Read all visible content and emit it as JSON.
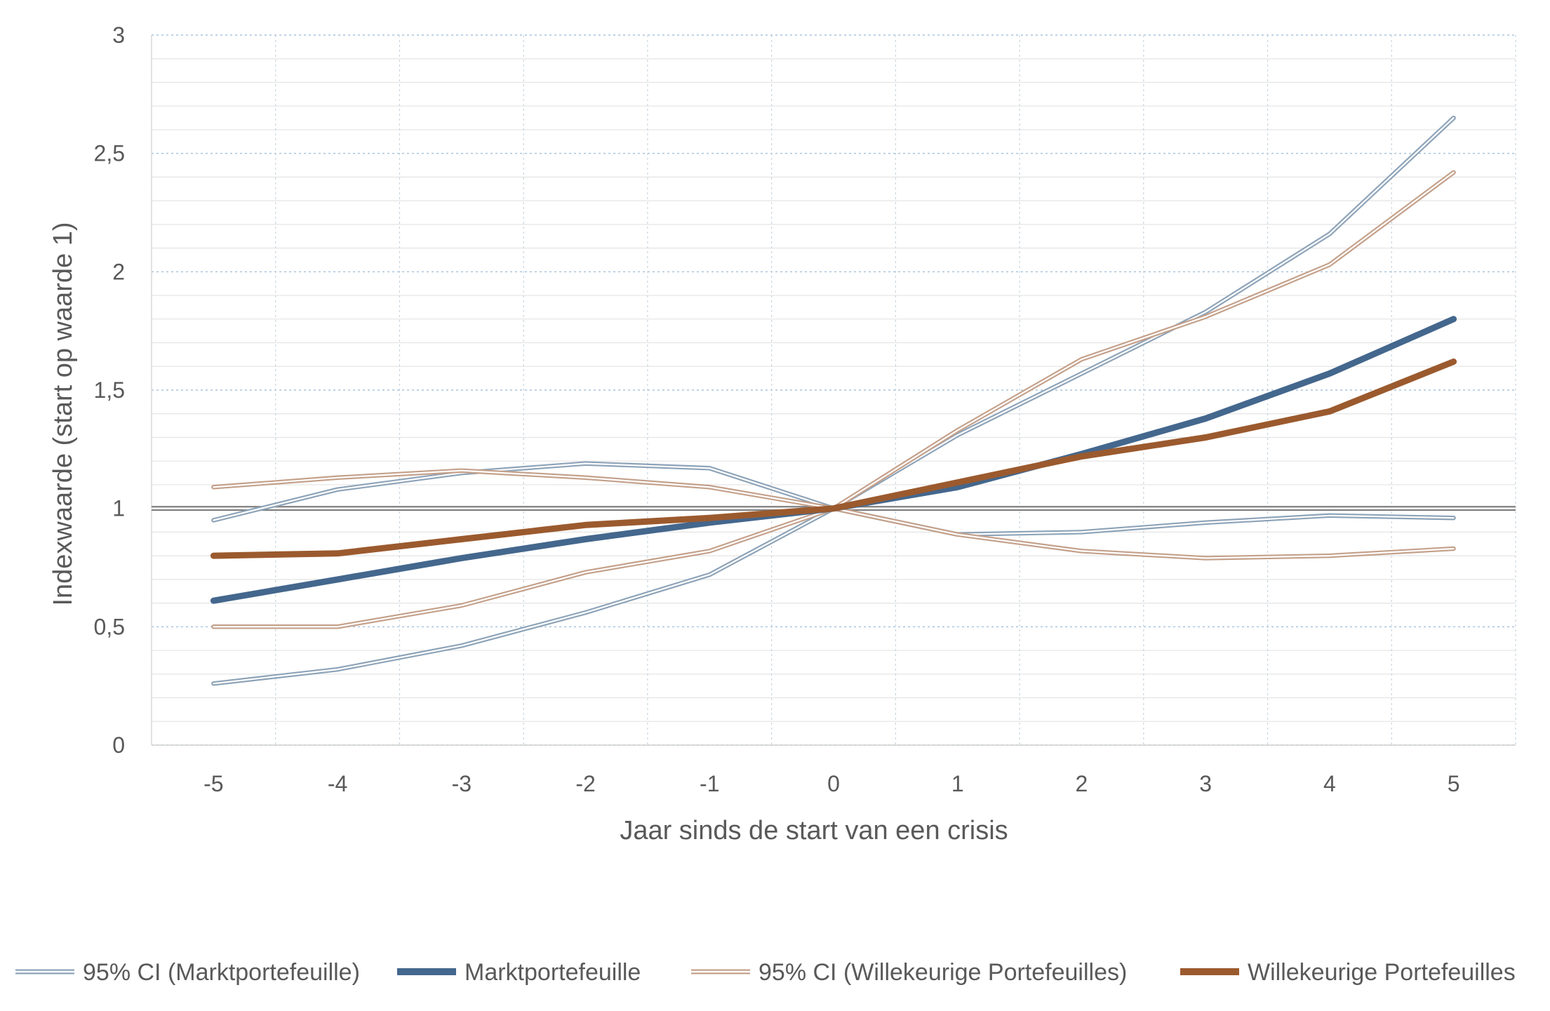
{
  "chart_data": {
    "type": "line",
    "title": "",
    "xlabel": "Jaar sinds de start van een crisis",
    "ylabel": "Indexwaarde (start op waarde 1)",
    "x": [
      -5,
      -4,
      -3,
      -2,
      -1,
      0,
      1,
      2,
      3,
      4,
      5
    ],
    "x_tick_labels": [
      "-5",
      "-4",
      "-3",
      "-2",
      "-1",
      "0",
      "1",
      "2",
      "3",
      "4",
      "5"
    ],
    "y_ticks": [
      0,
      0.5,
      1,
      1.5,
      2,
      2.5,
      3
    ],
    "y_tick_labels": [
      "0",
      "0,5",
      "1",
      "1,5",
      "2",
      "2,5",
      "3"
    ],
    "xlim": [
      -5.5,
      5.5
    ],
    "ylim": [
      0,
      3
    ],
    "grid": true,
    "legend_position": "bottom",
    "reference_line": 1,
    "series": [
      {
        "name": "95% CI (Marktportefeuille)",
        "role": "ci-upper",
        "color": "#8da3b8",
        "values": [
          0.95,
          1.08,
          1.15,
          1.19,
          1.17,
          1.0,
          1.31,
          1.57,
          1.83,
          2.16,
          2.65
        ]
      },
      {
        "name": "95% CI (Marktportefeuille)",
        "role": "ci-lower",
        "color": "#8da3b8",
        "values": [
          0.26,
          0.32,
          0.42,
          0.56,
          0.72,
          1.0,
          0.89,
          0.9,
          0.94,
          0.97,
          0.96
        ]
      },
      {
        "name": "95% CI (Willekeurige Portefeuilles)",
        "role": "ci-upper",
        "color": "#c4a08a",
        "values": [
          1.09,
          1.13,
          1.16,
          1.13,
          1.09,
          1.0,
          1.33,
          1.63,
          1.81,
          2.03,
          2.42
        ]
      },
      {
        "name": "95% CI (Willekeurige Portefeuilles)",
        "role": "ci-lower",
        "color": "#c4a08a",
        "values": [
          0.5,
          0.5,
          0.59,
          0.73,
          0.82,
          1.0,
          0.89,
          0.82,
          0.79,
          0.8,
          0.83
        ]
      },
      {
        "name": "Marktportefeuille",
        "role": "main",
        "color": "#44678d",
        "values": [
          0.61,
          0.7,
          0.79,
          0.87,
          0.94,
          1.0,
          1.09,
          1.23,
          1.38,
          1.57,
          1.8
        ]
      },
      {
        "name": "Willekeurige Portefeuilles",
        "role": "main",
        "color": "#9b5a2e",
        "values": [
          0.8,
          0.81,
          0.87,
          0.93,
          0.96,
          1.0,
          1.11,
          1.22,
          1.3,
          1.41,
          1.62
        ]
      }
    ],
    "legend": [
      {
        "label": "95% CI (Marktportefeuille)",
        "color": "#8da3b8",
        "style": "double"
      },
      {
        "label": "Marktportefeuille",
        "color": "#44678d",
        "style": "thick"
      },
      {
        "label": "95% CI (Willekeurige Portefeuilles)",
        "color": "#c4a08a",
        "style": "double"
      },
      {
        "label": "Willekeurige Portefeuilles",
        "color": "#9b5a2e",
        "style": "thick"
      }
    ]
  }
}
